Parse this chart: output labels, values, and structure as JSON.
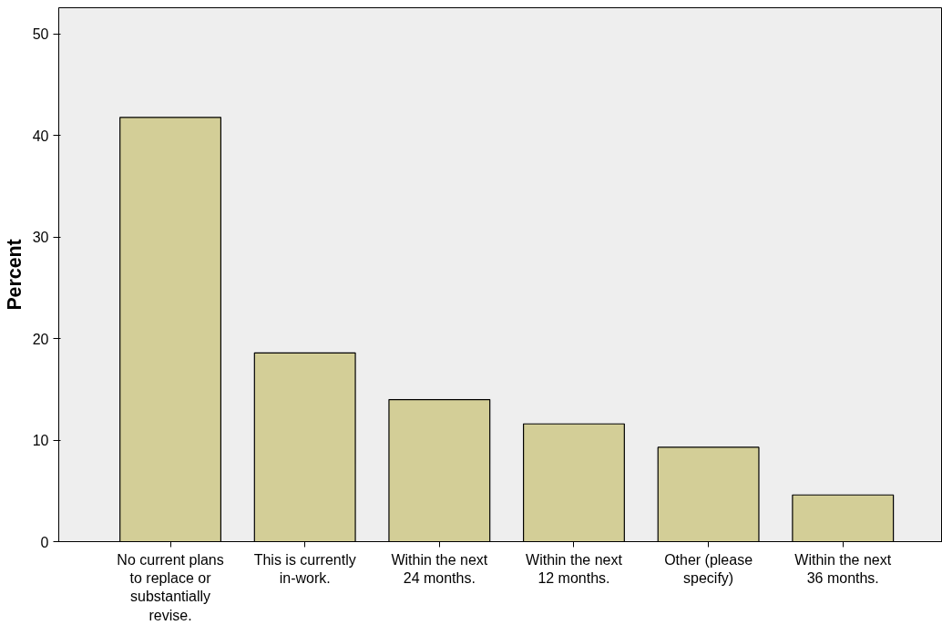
{
  "chart_data": {
    "type": "bar",
    "ylabel": "Percent",
    "categories": [
      "No current plans to replace or substantially revise.",
      "This is currently in-work.",
      "Within the next 24 months.",
      "Within the next 12 months.",
      "Other (please specify)",
      "Within the next 36 months."
    ],
    "values": [
      41.8,
      18.6,
      14.0,
      11.6,
      9.3,
      4.6
    ],
    "color": "#d3ce97",
    "ylim": [
      0,
      52.6
    ],
    "yticks": [
      0,
      10,
      20,
      30,
      40,
      50
    ],
    "grid": false
  }
}
